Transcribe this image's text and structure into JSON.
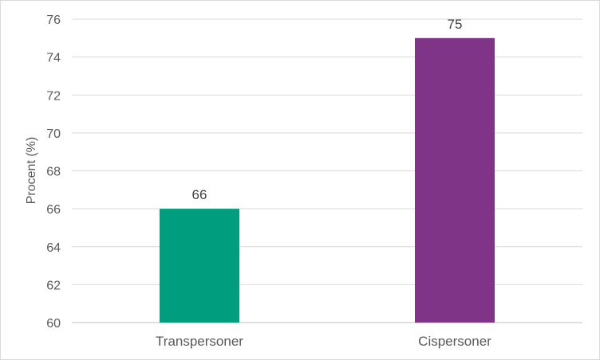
{
  "chart_data": {
    "type": "bar",
    "categories": [
      "Transpersoner",
      "Cispersoner"
    ],
    "values": [
      66,
      75
    ],
    "data_labels": [
      "66",
      "75"
    ],
    "bar_colors": [
      "#009e7e",
      "#7f3488"
    ],
    "ylabel": "Procent (%)",
    "xlabel": "",
    "title": "",
    "ylim": [
      60,
      76
    ],
    "yticks": [
      60,
      62,
      64,
      66,
      68,
      70,
      72,
      74,
      76
    ],
    "grid": true,
    "legend": "none"
  }
}
